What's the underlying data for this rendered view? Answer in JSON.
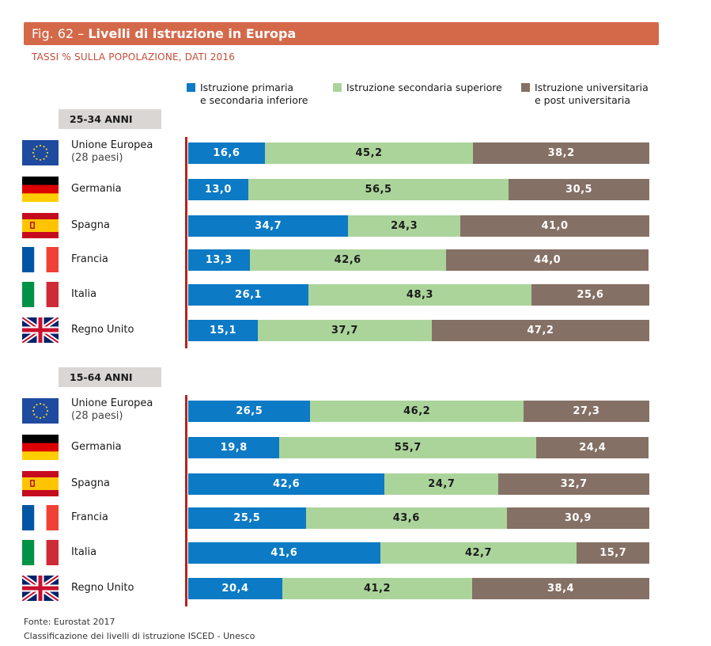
{
  "header": {
    "fig_label": "Fig. 62 –",
    "title": "Livelli di istruzione in Europa",
    "subtitle": "TASSI % SULLA POPOLAZIONE, DATI 2016"
  },
  "legend": [
    {
      "line1": "Istruzione primaria",
      "line2": "e secondaria inferiore",
      "color": "#0c7ac4"
    },
    {
      "line1": "Istruzione secondaria superiore",
      "line2": "",
      "color": "#abd49b"
    },
    {
      "line1": "Istruzione universitaria",
      "line2": "e post universitaria",
      "color": "#857065"
    }
  ],
  "colors": {
    "primary": "#0c7ac4",
    "secondary": "#abd49b",
    "tertiary": "#857065",
    "title_bar": "#d4694a",
    "axis": "#b2251d"
  },
  "chart_data": [
    {
      "type": "bar",
      "stacked": true,
      "orientation": "horizontal",
      "group_label": "25-34 ANNI",
      "categories": [
        {
          "name": "Unione Europea",
          "sub": "(28 paesi)",
          "flag": "eu-flag-icon"
        },
        {
          "name": "Germania",
          "sub": "",
          "flag": "germany-flag-icon"
        },
        {
          "name": "Spagna",
          "sub": "",
          "flag": "spain-flag-icon"
        },
        {
          "name": "Francia",
          "sub": "",
          "flag": "france-flag-icon"
        },
        {
          "name": "Italia",
          "sub": "",
          "flag": "italy-flag-icon"
        },
        {
          "name": "Regno Unito",
          "sub": "",
          "flag": "uk-flag-icon"
        }
      ],
      "series": [
        {
          "name": "Istruzione primaria e secondaria inferiore",
          "values": [
            16.6,
            13.0,
            34.7,
            13.3,
            26.1,
            15.1
          ],
          "labels": [
            "16,6",
            "13,0",
            "34,7",
            "13,3",
            "26,1",
            "15,1"
          ]
        },
        {
          "name": "Istruzione secondaria superiore",
          "values": [
            45.2,
            56.5,
            24.3,
            42.6,
            48.3,
            37.7
          ],
          "labels": [
            "45,2",
            "56,5",
            "24,3",
            "42,6",
            "48,3",
            "37,7"
          ]
        },
        {
          "name": "Istruzione universitaria e post universitaria",
          "values": [
            38.2,
            30.5,
            41.0,
            44.0,
            25.6,
            47.2
          ],
          "labels": [
            "38,2",
            "30,5",
            "41,0",
            "44,0",
            "25,6",
            "47,2"
          ]
        }
      ],
      "xlim": [
        0,
        100
      ]
    },
    {
      "type": "bar",
      "stacked": true,
      "orientation": "horizontal",
      "group_label": "15-64 ANNI",
      "categories": [
        {
          "name": "Unione Europea",
          "sub": "(28 paesi)",
          "flag": "eu-flag-icon"
        },
        {
          "name": "Germania",
          "sub": "",
          "flag": "germany-flag-icon"
        },
        {
          "name": "Spagna",
          "sub": "",
          "flag": "spain-flag-icon"
        },
        {
          "name": "Francia",
          "sub": "",
          "flag": "france-flag-icon"
        },
        {
          "name": "Italia",
          "sub": "",
          "flag": "italy-flag-icon"
        },
        {
          "name": "Regno Unito",
          "sub": "",
          "flag": "uk-flag-icon"
        }
      ],
      "series": [
        {
          "name": "Istruzione primaria e secondaria inferiore",
          "values": [
            26.5,
            19.8,
            42.6,
            25.5,
            41.6,
            20.4
          ],
          "labels": [
            "26,5",
            "19,8",
            "42,6",
            "25,5",
            "41,6",
            "20,4"
          ]
        },
        {
          "name": "Istruzione secondaria superiore",
          "values": [
            46.2,
            55.7,
            24.7,
            43.6,
            42.7,
            41.2
          ],
          "labels": [
            "46,2",
            "55,7",
            "24,7",
            "43,6",
            "42,7",
            "41,2"
          ]
        },
        {
          "name": "Istruzione universitaria e post universitaria",
          "values": [
            27.3,
            24.4,
            32.7,
            30.9,
            15.7,
            38.4
          ],
          "labels": [
            "27,3",
            "24,4",
            "32,7",
            "30,9",
            "15,7",
            "38,4"
          ]
        }
      ],
      "xlim": [
        0,
        100
      ]
    }
  ],
  "footer": {
    "source": "Fonte: Eurostat 2017",
    "note": "Classificazione dei livelli di istruzione ISCED - Unesco"
  }
}
